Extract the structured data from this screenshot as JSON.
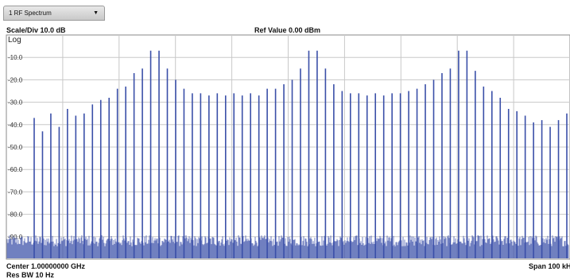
{
  "window": {
    "tab_label": "1 RF Spectrum",
    "tab_menu_icon": "dropdown-caret-icon"
  },
  "header": {
    "scale_div": "Scale/Div 10.0 dB",
    "ref_value": "Ref Value 0.00 dBm",
    "scale_type": "Log"
  },
  "footer": {
    "center": "Center 1.00000000 GHz",
    "res_bw": "Res BW 10 Hz",
    "span": "Span 100 kH"
  },
  "colors": {
    "trace": "#3a4fa8",
    "grid": "#c8c8c8",
    "border": "#8a8a8a"
  },
  "chart_data": {
    "type": "bar",
    "ylabel": "",
    "ylim": [
      -100,
      0
    ],
    "yticks": [
      "-10.0",
      "-20.0",
      "-30.0",
      "-40.0",
      "-50.0",
      "-60.0",
      "-70.0",
      "-80.0",
      "-90.0"
    ],
    "noise_floor_dbm": -95,
    "peaks_dbm": [
      -37,
      -43,
      -35,
      -41,
      -33,
      -36,
      -35,
      -31,
      -29,
      -28,
      -24,
      -23,
      -17,
      -15,
      -7,
      -7,
      -15,
      -20,
      -24,
      -26,
      -26,
      -27,
      -26,
      -27,
      -26,
      -27,
      -26,
      -27,
      -24,
      -24,
      -22,
      -20,
      -15,
      -7,
      -7,
      -15,
      -22,
      -25,
      -26,
      -26,
      -27,
      -26,
      -27,
      -26,
      -26,
      -25,
      -24,
      -22,
      -20,
      -17,
      -15,
      -7,
      -7,
      -16,
      -23,
      -25,
      -28,
      -33,
      -34,
      -36,
      -39,
      -38,
      -41,
      -38,
      -35
    ],
    "grid": true
  }
}
